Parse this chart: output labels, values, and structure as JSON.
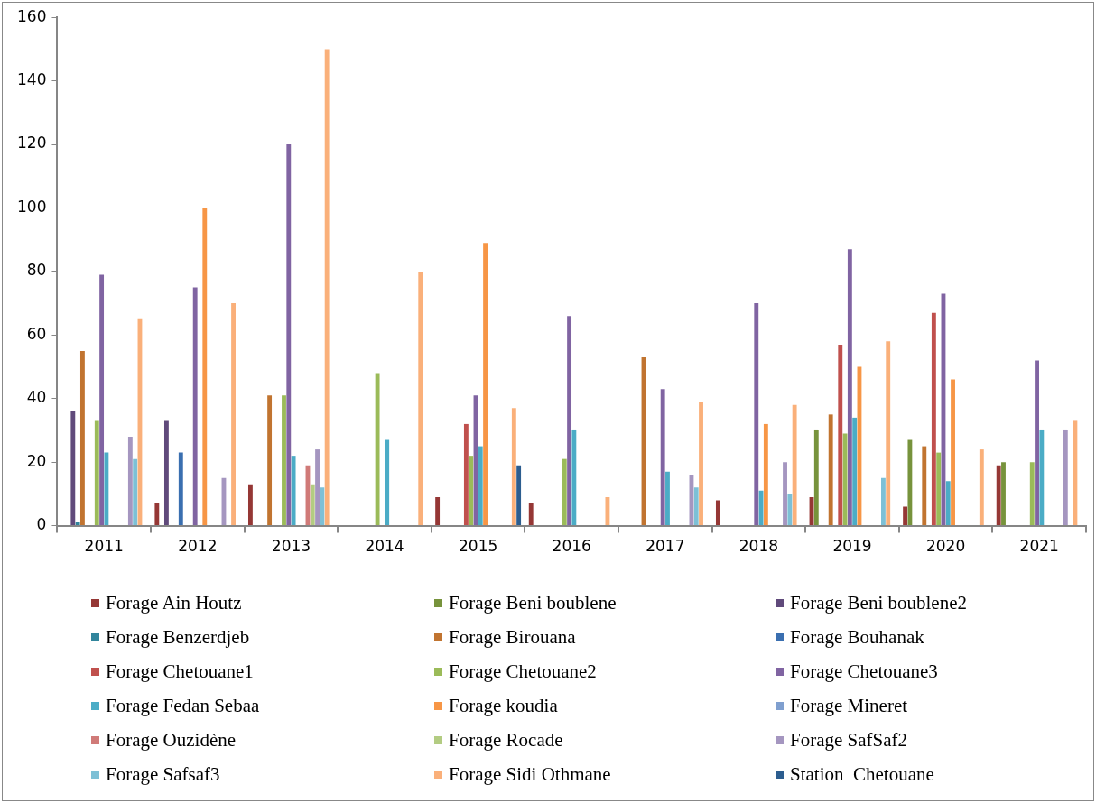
{
  "chart_data": {
    "type": "bar",
    "categories": [
      "2011",
      "2012",
      "2013",
      "2014",
      "2015",
      "2016",
      "2017",
      "2018",
      "2019",
      "2020",
      "2021"
    ],
    "ylim": [
      0,
      160
    ],
    "yticks": [
      0,
      20,
      40,
      60,
      80,
      100,
      120,
      140,
      160
    ],
    "grid": false,
    "legend": "bottom",
    "series": [
      {
        "name": "Forage Ain Houtz",
        "color": "#953735",
        "values": [
          null,
          7,
          13,
          null,
          9,
          7,
          null,
          8,
          9,
          6,
          19
        ]
      },
      {
        "name": "Forage Beni boublene",
        "color": "#77933c",
        "values": [
          null,
          null,
          null,
          null,
          null,
          null,
          null,
          null,
          30,
          27,
          20
        ]
      },
      {
        "name": "Forage Beni boublene2",
        "color": "#604a7b",
        "values": [
          36,
          33,
          null,
          null,
          null,
          null,
          null,
          null,
          null,
          null,
          null
        ]
      },
      {
        "name": "Forage Benzerdjeb",
        "color": "#31859c",
        "values": [
          1,
          null,
          null,
          null,
          null,
          null,
          null,
          null,
          null,
          null,
          null
        ]
      },
      {
        "name": "Forage Birouana",
        "color": "#c17430",
        "values": [
          55,
          null,
          41,
          null,
          null,
          null,
          53,
          null,
          35,
          25,
          null
        ]
      },
      {
        "name": "Forage Bouhanak",
        "color": "#3a6fb0",
        "values": [
          null,
          23,
          null,
          null,
          null,
          null,
          null,
          null,
          null,
          null,
          null
        ]
      },
      {
        "name": "Forage Chetouane1",
        "color": "#c0504d",
        "values": [
          null,
          null,
          null,
          null,
          32,
          null,
          null,
          null,
          57,
          67,
          null
        ]
      },
      {
        "name": "Forage Chetouane2",
        "color": "#9bbb59",
        "values": [
          33,
          null,
          41,
          48,
          22,
          21,
          null,
          null,
          29,
          23,
          20
        ]
      },
      {
        "name": "Forage Chetouane3",
        "color": "#8064a2",
        "values": [
          79,
          75,
          120,
          null,
          41,
          66,
          43,
          70,
          87,
          73,
          52
        ]
      },
      {
        "name": "Forage Fedan Sebaa",
        "color": "#4bacc6",
        "values": [
          23,
          null,
          22,
          27,
          25,
          30,
          17,
          11,
          34,
          14,
          30
        ]
      },
      {
        "name": "Forage koudia",
        "color": "#f79646",
        "values": [
          null,
          100,
          null,
          null,
          89,
          null,
          null,
          32,
          50,
          46,
          null
        ]
      },
      {
        "name": "Forage Mineret",
        "color": "#7f9fcf",
        "values": [
          null,
          null,
          null,
          null,
          null,
          null,
          null,
          null,
          null,
          null,
          null
        ]
      },
      {
        "name": "Forage Ouzidène",
        "color": "#d07a78",
        "values": [
          null,
          null,
          19,
          null,
          null,
          null,
          null,
          null,
          null,
          null,
          null
        ]
      },
      {
        "name": "Forage Rocade",
        "color": "#b3cc82",
        "values": [
          null,
          null,
          13,
          null,
          null,
          null,
          null,
          null,
          null,
          null,
          null
        ]
      },
      {
        "name": "Forage SafSaf2",
        "color": "#a596c0",
        "values": [
          28,
          15,
          24,
          null,
          null,
          null,
          16,
          20,
          null,
          null,
          30
        ]
      },
      {
        "name": "Forage Safsaf3",
        "color": "#7dc0d6",
        "values": [
          21,
          null,
          12,
          null,
          null,
          null,
          12,
          10,
          15,
          null,
          null
        ]
      },
      {
        "name": "Forage Sidi Othmane",
        "color": "#fab07a",
        "values": [
          65,
          70,
          150,
          80,
          37,
          9,
          39,
          38,
          58,
          24,
          33
        ]
      },
      {
        "name": "Station  Chetouane",
        "color": "#2c5d8f",
        "values": [
          null,
          null,
          null,
          null,
          19,
          null,
          null,
          null,
          null,
          null,
          null
        ]
      }
    ]
  }
}
